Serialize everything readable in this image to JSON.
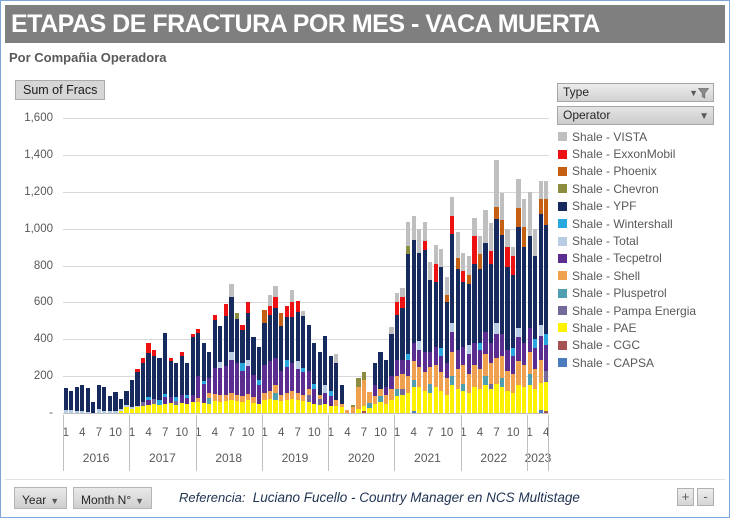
{
  "header": {
    "title": "ETAPAS DE FRACTURA POR MES -  VACA MUERTA",
    "subtitle": "Por Compañia Operadora"
  },
  "toolbar": {
    "sum_of_fracs_label": "Sum of Fracs"
  },
  "slicers": {
    "type_label": "Type",
    "operator_label": "Operator"
  },
  "footer": {
    "year_button_label": "Year",
    "month_button_label": "Month N°",
    "reference_label": "Referencia:",
    "reference_text": "Luciano Fucello - Country Manager en NCS Multistage",
    "zoom_in_label": "+",
    "zoom_out_label": "-"
  },
  "colors": {
    "title_bar": "#7f7f7f",
    "gridline": "#d9d9d9",
    "axis_text": "#595959",
    "axis_line": "#bfbfbf"
  },
  "chart_data": {
    "type": "bar",
    "subtype": "stacked",
    "title": "ETAPAS DE FRACTURA POR MES -  VACA MUERTA",
    "xlabel": "Year / Month N°",
    "ylabel": "Sum of Fracs",
    "ylim": [
      0,
      1600
    ],
    "ytick_step": 200,
    "ytick_labels": [
      "1,600",
      "1,400",
      "1,200",
      "1,000",
      "800",
      "600",
      "400",
      "200",
      "-"
    ],
    "grid": true,
    "legend_position": "right",
    "years": [
      {
        "label": "2016",
        "months": 12
      },
      {
        "label": "2017",
        "months": 12
      },
      {
        "label": "2018",
        "months": 12
      },
      {
        "label": "2019",
        "months": 12
      },
      {
        "label": "2020",
        "months": 12
      },
      {
        "label": "2021",
        "months": 12
      },
      {
        "label": "2022",
        "months": 12
      },
      {
        "label": "2023",
        "months": 4
      }
    ],
    "month_tick_values": [
      1,
      4,
      7,
      10
    ],
    "stack_note": "series listed top-of-stack first (legend order); stacking bottom-to-top is the reverse",
    "series": [
      {
        "name": "Shale - VISTA",
        "color": "#bfbfbf",
        "values": [
          0,
          0,
          0,
          0,
          0,
          0,
          0,
          0,
          0,
          0,
          0,
          0,
          0,
          0,
          0,
          0,
          0,
          0,
          0,
          0,
          0,
          0,
          0,
          0,
          0,
          0,
          0,
          0,
          0,
          0,
          70,
          0,
          0,
          0,
          0,
          0,
          0,
          60,
          60,
          0,
          0,
          65,
          0,
          30,
          0,
          0,
          0,
          0,
          0,
          50,
          0,
          0,
          0,
          0,
          0,
          0,
          0,
          0,
          0,
          35,
          50,
          50,
          130,
          130,
          130,
          100,
          100,
          100,
          100,
          100,
          100,
          140,
          100,
          100,
          100,
          100,
          180,
          150,
          250,
          150,
          100,
          50,
          160,
          150,
          240,
          150,
          100,
          100
        ]
      },
      {
        "name": "Shale - ExxonMobil",
        "color": "#ee1111",
        "values": [
          0,
          0,
          0,
          0,
          0,
          0,
          0,
          0,
          0,
          0,
          0,
          0,
          0,
          20,
          30,
          55,
          30,
          0,
          0,
          20,
          0,
          20,
          0,
          20,
          20,
          0,
          0,
          25,
          0,
          65,
          0,
          0,
          30,
          60,
          0,
          0,
          0,
          50,
          60,
          0,
          60,
          80,
          60,
          0,
          0,
          0,
          0,
          0,
          0,
          0,
          0,
          0,
          0,
          0,
          0,
          0,
          0,
          0,
          0,
          0,
          70,
          60,
          0,
          0,
          0,
          50,
          0,
          100,
          0,
          0,
          100,
          0,
          60,
          0,
          150,
          0,
          0,
          70,
          0,
          0,
          110,
          100,
          0,
          0,
          0,
          0,
          0,
          0
        ]
      },
      {
        "name": "Shale - Phoenix",
        "color": "#c55f11",
        "values": [
          0,
          0,
          0,
          0,
          0,
          0,
          0,
          0,
          0,
          0,
          0,
          0,
          0,
          0,
          0,
          0,
          0,
          0,
          0,
          0,
          0,
          0,
          0,
          0,
          0,
          0,
          0,
          0,
          0,
          0,
          0,
          0,
          0,
          0,
          0,
          0,
          70,
          0,
          0,
          70,
          0,
          0,
          0,
          0,
          0,
          0,
          0,
          0,
          0,
          0,
          0,
          0,
          0,
          0,
          0,
          0,
          0,
          0,
          0,
          0,
          0,
          0,
          0,
          0,
          0,
          0,
          0,
          0,
          0,
          40,
          0,
          60,
          0,
          50,
          0,
          80,
          0,
          0,
          70,
          80,
          0,
          0,
          100,
          110,
          0,
          0,
          80,
          140
        ]
      },
      {
        "name": "Shale - Chevron",
        "color": "#8c8d40",
        "values": [
          0,
          0,
          0,
          0,
          0,
          0,
          0,
          0,
          0,
          0,
          0,
          0,
          0,
          0,
          0,
          0,
          0,
          0,
          0,
          0,
          0,
          0,
          0,
          0,
          0,
          0,
          0,
          0,
          0,
          0,
          0,
          30,
          0,
          0,
          0,
          0,
          0,
          0,
          0,
          0,
          0,
          0,
          0,
          0,
          0,
          0,
          0,
          0,
          0,
          0,
          0,
          0,
          15,
          50,
          40,
          0,
          0,
          0,
          0,
          0,
          0,
          0,
          40,
          0,
          0,
          0,
          0,
          0,
          0,
          0,
          0,
          0,
          0,
          0,
          0,
          0,
          0,
          0,
          0,
          0,
          0,
          0,
          0,
          0,
          0,
          0,
          0,
          0
        ]
      },
      {
        "name": "Shale - YPF",
        "color": "#172a5e",
        "values": [
          120,
          100,
          130,
          140,
          130,
          62,
          130,
          130,
          80,
          100,
          50,
          80,
          150,
          180,
          210,
          240,
          235,
          230,
          330,
          195,
          185,
          215,
          170,
          310,
          235,
          205,
          140,
          260,
          195,
          270,
          300,
          240,
          180,
          250,
          205,
          180,
          230,
          250,
          270,
          240,
          230,
          250,
          270,
          280,
          250,
          220,
          230,
          270,
          190,
          200,
          100,
          0,
          0,
          0,
          0,
          0,
          120,
          200,
          150,
          230,
          240,
          280,
          545,
          560,
          480,
          555,
          390,
          350,
          440,
          330,
          480,
          440,
          350,
          330,
          430,
          400,
          480,
          430,
          560,
          535,
          450,
          400,
          550,
          520,
          500,
          450,
          605,
          590
        ]
      },
      {
        "name": "Shale - Wintershall",
        "color": "#29a8e0",
        "values": [
          0,
          0,
          0,
          0,
          0,
          0,
          0,
          0,
          0,
          0,
          0,
          0,
          0,
          0,
          0,
          15,
          0,
          25,
          20,
          0,
          20,
          0,
          20,
          0,
          0,
          20,
          0,
          0,
          0,
          0,
          0,
          0,
          40,
          0,
          0,
          30,
          0,
          0,
          0,
          0,
          40,
          0,
          0,
          25,
          0,
          30,
          0,
          0,
          30,
          0,
          0,
          0,
          0,
          0,
          0,
          0,
          0,
          0,
          0,
          0,
          0,
          0,
          30,
          0,
          0,
          0,
          0,
          0,
          40,
          0,
          0,
          0,
          0,
          0,
          0,
          40,
          0,
          0,
          0,
          0,
          0,
          40,
          0,
          0,
          0,
          50,
          0,
          60
        ]
      },
      {
        "name": "Shale - Total",
        "color": "#b8cce4",
        "values": [
          15,
          18,
          12,
          10,
          8,
          0,
          20,
          12,
          10,
          12,
          14,
          12,
          10,
          10,
          0,
          0,
          0,
          0,
          0,
          0,
          0,
          0,
          0,
          0,
          0,
          0,
          0,
          0,
          30,
          0,
          40,
          0,
          0,
          35,
          0,
          0,
          0,
          0,
          0,
          0,
          0,
          0,
          40,
          0,
          0,
          0,
          0,
          40,
          0,
          0,
          0,
          0,
          0,
          0,
          0,
          0,
          0,
          0,
          0,
          0,
          0,
          0,
          0,
          0,
          50,
          0,
          0,
          0,
          0,
          0,
          50,
          0,
          0,
          50,
          0,
          0,
          0,
          0,
          60,
          0,
          0,
          0,
          50,
          0,
          0,
          0,
          60,
          0
        ]
      },
      {
        "name": "Shale - Tecpetrol",
        "color": "#5c2d91",
        "values": [
          0,
          0,
          0,
          0,
          0,
          0,
          0,
          0,
          0,
          0,
          0,
          0,
          0,
          0,
          0,
          25,
          0,
          0,
          35,
          30,
          0,
          40,
          30,
          40,
          120,
          100,
          80,
          140,
          150,
          160,
          180,
          170,
          140,
          150,
          120,
          100,
          150,
          160,
          150,
          130,
          140,
          150,
          130,
          120,
          100,
          80,
          0,
          60,
          50,
          0,
          0,
          0,
          0,
          0,
          0,
          0,
          60,
          0,
          40,
          70,
          90,
          80,
          90,
          100,
          90,
          110,
          80,
          100,
          90,
          80,
          110,
          100,
          100,
          110,
          120,
          100,
          120,
          110,
          130,
          120,
          110,
          100,
          130,
          120,
          130,
          110,
          130,
          140
        ]
      },
      {
        "name": "Shale - Shell",
        "color": "#efa14f",
        "values": [
          0,
          0,
          0,
          0,
          0,
          0,
          0,
          0,
          0,
          0,
          0,
          0,
          0,
          0,
          0,
          0,
          0,
          0,
          0,
          0,
          0,
          0,
          0,
          0,
          20,
          0,
          30,
          40,
          35,
          30,
          40,
          35,
          30,
          35,
          30,
          0,
          40,
          45,
          40,
          35,
          40,
          45,
          40,
          35,
          30,
          0,
          25,
          0,
          0,
          30,
          20,
          15,
          30,
          120,
          140,
          60,
          40,
          40,
          50,
          60,
          70,
          80,
          90,
          100,
          110,
          100,
          90,
          120,
          100,
          90,
          130,
          110,
          100,
          100,
          120,
          110,
          120,
          110,
          140,
          120,
          110,
          100,
          130,
          120,
          120,
          110,
          120,
          0
        ]
      },
      {
        "name": "Shale - Pluspetrol",
        "color": "#4f9fb1",
        "values": [
          0,
          0,
          0,
          0,
          0,
          0,
          0,
          0,
          0,
          0,
          0,
          0,
          0,
          0,
          0,
          0,
          0,
          0,
          0,
          0,
          0,
          0,
          0,
          0,
          0,
          0,
          30,
          0,
          0,
          0,
          0,
          0,
          0,
          0,
          0,
          0,
          0,
          0,
          40,
          0,
          0,
          0,
          0,
          0,
          0,
          0,
          0,
          0,
          0,
          0,
          0,
          0,
          0,
          0,
          0,
          30,
          0,
          30,
          0,
          0,
          40,
          0,
          0,
          40,
          0,
          0,
          50,
          0,
          0,
          0,
          50,
          0,
          40,
          0,
          0,
          0,
          50,
          0,
          0,
          50,
          0,
          0,
          0,
          0,
          60,
          0,
          0,
          0
        ]
      },
      {
        "name": "Shale - Pampa Energia",
        "color": "#746a9a",
        "values": [
          0,
          0,
          0,
          0,
          0,
          0,
          0,
          0,
          0,
          0,
          0,
          0,
          0,
          0,
          20,
          0,
          25,
          0,
          0,
          0,
          20,
          0,
          0,
          0,
          0,
          0,
          0,
          0,
          0,
          0,
          0,
          0,
          0,
          0,
          0,
          0,
          0,
          0,
          0,
          0,
          0,
          0,
          0,
          0,
          40,
          0,
          30,
          0,
          0,
          0,
          0,
          0,
          0,
          0,
          0,
          0,
          0,
          0,
          0,
          0,
          0,
          30,
          0,
          0,
          0,
          0,
          0,
          0,
          0,
          0,
          0,
          0,
          0,
          0,
          0,
          0,
          0,
          30,
          0,
          0,
          0,
          0,
          0,
          0,
          0,
          0,
          0,
          60
        ]
      },
      {
        "name": "Shale - PAE",
        "color": "#fef200",
        "values": [
          0,
          0,
          0,
          0,
          0,
          0,
          0,
          0,
          0,
          0,
          10,
          30,
          20,
          30,
          40,
          45,
          50,
          45,
          50,
          55,
          45,
          55,
          50,
          60,
          60,
          55,
          50,
          65,
          60,
          65,
          70,
          65,
          60,
          70,
          55,
          50,
          70,
          75,
          70,
          65,
          70,
          75,
          70,
          65,
          60,
          50,
          45,
          50,
          40,
          40,
          30,
          0,
          0,
          20,
          30,
          25,
          50,
          60,
          50,
          70,
          90,
          100,
          110,
          130,
          140,
          120,
          110,
          140,
          120,
          100,
          150,
          130,
          120,
          110,
          140,
          130,
          150,
          130,
          160,
          140,
          120,
          110,
          150,
          140,
          150,
          130,
          150,
          160
        ]
      },
      {
        "name": "Shale - CGC",
        "color": "#a55353",
        "values": [
          0,
          0,
          0,
          0,
          0,
          0,
          0,
          0,
          0,
          0,
          0,
          0,
          0,
          0,
          0,
          0,
          0,
          0,
          0,
          0,
          0,
          0,
          0,
          0,
          0,
          0,
          0,
          0,
          0,
          0,
          0,
          0,
          0,
          0,
          0,
          0,
          0,
          0,
          0,
          0,
          0,
          0,
          0,
          0,
          0,
          0,
          0,
          0,
          0,
          0,
          0,
          0,
          0,
          0,
          10,
          0,
          0,
          0,
          0,
          0,
          0,
          0,
          0,
          0,
          0,
          0,
          0,
          0,
          0,
          0,
          0,
          0,
          0,
          0,
          0,
          0,
          0,
          0,
          0,
          0,
          0,
          0,
          0,
          0,
          0,
          0,
          0,
          10
        ]
      },
      {
        "name": "Shale - CAPSA",
        "color": "#4a7cbe",
        "values": [
          0,
          0,
          0,
          0,
          0,
          0,
          0,
          0,
          0,
          0,
          0,
          0,
          0,
          0,
          0,
          0,
          0,
          0,
          0,
          0,
          0,
          0,
          0,
          0,
          0,
          0,
          0,
          0,
          0,
          0,
          0,
          0,
          0,
          0,
          0,
          0,
          0,
          0,
          0,
          0,
          0,
          0,
          0,
          0,
          0,
          0,
          0,
          0,
          0,
          0,
          0,
          0,
          0,
          0,
          0,
          0,
          0,
          0,
          0,
          0,
          0,
          0,
          0,
          10,
          0,
          0,
          0,
          0,
          0,
          0,
          0,
          0,
          0,
          0,
          0,
          0,
          0,
          0,
          0,
          0,
          0,
          0,
          0,
          0,
          0,
          0,
          15,
          0
        ]
      }
    ]
  }
}
